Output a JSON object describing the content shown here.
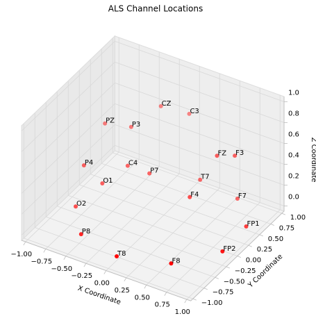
{
  "chart_data": {
    "type": "scatter3d",
    "title": "ALS Channel Locations",
    "xlabel": "X Coordinate",
    "ylabel": "Y Coordinate",
    "zlabel": "Z Coordinate",
    "color": "#ff0000",
    "labels": [
      "FP1",
      "FP2",
      "F7",
      "F8",
      "T8",
      "P8",
      "O2",
      "O1",
      "T7",
      "F4",
      "P7",
      "C4",
      "P4",
      "FZ",
      "F3",
      "PZ",
      "P3",
      "CZ",
      "C3"
    ],
    "x": [
      0.9,
      0.92,
      0.56,
      0.57,
      0.01,
      -0.52,
      -0.83,
      -0.61,
      0.24,
      0.31,
      -0.18,
      -0.35,
      -0.75,
      0.56,
      0.72,
      -0.66,
      -0.39,
      -0.12,
      0.11
    ],
    "y": [
      0.47,
      -0.1,
      0.89,
      -0.62,
      -0.83,
      -0.67,
      -0.23,
      -0.03,
      0.63,
      0.27,
      0.25,
      0.07,
      -0.19,
      0.43,
      0.54,
      0.12,
      0.22,
      0.4,
      0.62
    ],
    "z": [
      0,
      0,
      0,
      0,
      0,
      0,
      0,
      0.2,
      0.2,
      0.2,
      0.3,
      0.4,
      0.4,
      0.6,
      0.6,
      0.7,
      0.7,
      0.9,
      0.8
    ],
    "xlim": [
      -1.05,
      1.05
    ],
    "ylim": [
      -1.05,
      1.05
    ],
    "zlim": [
      -0.05,
      1.05
    ],
    "xticks": [
      {
        "value": -1,
        "label": "−1.00"
      },
      {
        "value": -0.75,
        "label": "−0.75"
      },
      {
        "value": -0.5,
        "label": "−0.50"
      },
      {
        "value": -0.25,
        "label": "−0.25"
      },
      {
        "value": 0,
        "label": "0.00"
      },
      {
        "value": 0.25,
        "label": "0.25"
      },
      {
        "value": 0.5,
        "label": "0.50"
      },
      {
        "value": 0.75,
        "label": "0.75"
      },
      {
        "value": 1,
        "label": "1.00"
      }
    ],
    "yticks": [
      {
        "value": -1,
        "label": "−1.00"
      },
      {
        "value": -0.75,
        "label": "−0.75"
      },
      {
        "value": -0.5,
        "label": "−0.50"
      },
      {
        "value": -0.25,
        "label": "−0.25"
      },
      {
        "value": 0,
        "label": "0.00"
      },
      {
        "value": 0.25,
        "label": "0.25"
      },
      {
        "value": 0.5,
        "label": "0.50"
      },
      {
        "value": 0.75,
        "label": "0.75"
      },
      {
        "value": 1,
        "label": "1.00"
      }
    ],
    "zticks": [
      {
        "value": 0,
        "label": "0.0"
      },
      0.2,
      0.4,
      0.6,
      0.8,
      {
        "value": 1,
        "label": "1.0"
      }
    ],
    "grid": true,
    "depthshade": true
  }
}
